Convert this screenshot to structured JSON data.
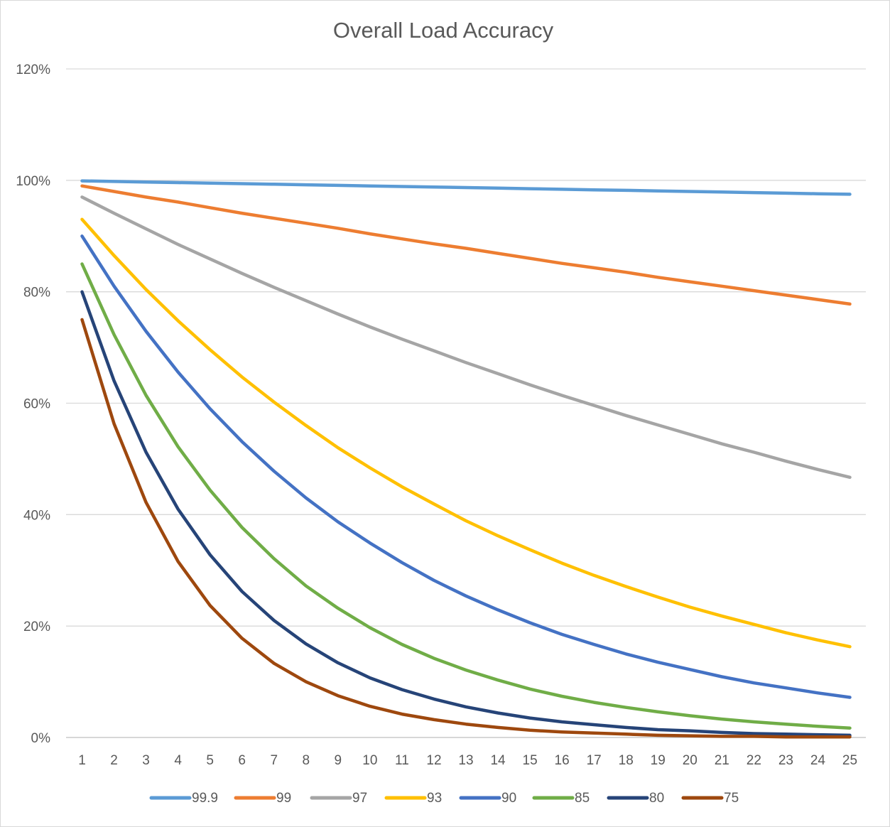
{
  "chart_data": {
    "type": "line",
    "title": "Overall Load Accuracy",
    "xlabel": "",
    "ylabel": "",
    "x": [
      1,
      2,
      3,
      4,
      5,
      6,
      7,
      8,
      9,
      10,
      11,
      12,
      13,
      14,
      15,
      16,
      17,
      18,
      19,
      20,
      21,
      22,
      23,
      24,
      25
    ],
    "ylim": [
      0,
      1.2
    ],
    "yticks": [
      {
        "value": 0,
        "label": "0%"
      },
      {
        "value": 0.2,
        "label": "20%"
      },
      {
        "value": 0.4,
        "label": "40%"
      },
      {
        "value": 0.6,
        "label": "60%"
      },
      {
        "value": 0.8,
        "label": "80%"
      },
      {
        "value": 1.0,
        "label": "100%"
      },
      {
        "value": 1.2,
        "label": "120%"
      }
    ],
    "grid": true,
    "legend_position": "bottom",
    "series": [
      {
        "name": "99.9",
        "color": "#5b9bd5",
        "values": [
          0.999,
          0.998,
          0.997,
          0.996,
          0.995,
          0.994,
          0.993,
          0.992,
          0.991,
          0.99,
          0.989,
          0.988,
          0.987,
          0.986,
          0.985,
          0.984,
          0.983,
          0.982,
          0.981,
          0.98,
          0.979,
          0.978,
          0.977,
          0.976,
          0.975
        ]
      },
      {
        "name": "99",
        "color": "#ed7d31",
        "values": [
          0.99,
          0.98,
          0.97,
          0.961,
          0.951,
          0.941,
          0.932,
          0.923,
          0.914,
          0.904,
          0.895,
          0.886,
          0.878,
          0.869,
          0.86,
          0.851,
          0.843,
          0.835,
          0.826,
          0.818,
          0.81,
          0.802,
          0.794,
          0.786,
          0.778
        ]
      },
      {
        "name": "97",
        "color": "#a5a5a5",
        "values": [
          0.97,
          0.941,
          0.913,
          0.885,
          0.859,
          0.833,
          0.808,
          0.784,
          0.76,
          0.737,
          0.715,
          0.694,
          0.673,
          0.653,
          0.633,
          0.614,
          0.596,
          0.578,
          0.561,
          0.544,
          0.527,
          0.512,
          0.496,
          0.481,
          0.467
        ]
      },
      {
        "name": "93",
        "color": "#ffc000",
        "values": [
          0.93,
          0.865,
          0.804,
          0.748,
          0.696,
          0.647,
          0.602,
          0.56,
          0.52,
          0.484,
          0.45,
          0.419,
          0.389,
          0.362,
          0.337,
          0.313,
          0.291,
          0.271,
          0.252,
          0.234,
          0.218,
          0.203,
          0.188,
          0.175,
          0.163
        ]
      },
      {
        "name": "90",
        "color": "#4472c4",
        "values": [
          0.9,
          0.81,
          0.729,
          0.656,
          0.59,
          0.531,
          0.478,
          0.43,
          0.387,
          0.349,
          0.314,
          0.282,
          0.254,
          0.229,
          0.206,
          0.185,
          0.167,
          0.15,
          0.135,
          0.122,
          0.109,
          0.098,
          0.089,
          0.08,
          0.072
        ]
      },
      {
        "name": "85",
        "color": "#70ad47",
        "values": [
          0.85,
          0.723,
          0.614,
          0.522,
          0.444,
          0.377,
          0.321,
          0.272,
          0.232,
          0.197,
          0.167,
          0.142,
          0.121,
          0.103,
          0.087,
          0.074,
          0.063,
          0.054,
          0.046,
          0.039,
          0.033,
          0.028,
          0.024,
          0.02,
          0.017
        ]
      },
      {
        "name": "80",
        "color": "#264478",
        "values": [
          0.8,
          0.64,
          0.512,
          0.41,
          0.328,
          0.262,
          0.21,
          0.168,
          0.134,
          0.107,
          0.086,
          0.069,
          0.055,
          0.044,
          0.035,
          0.028,
          0.023,
          0.018,
          0.014,
          0.012,
          0.009,
          0.007,
          0.006,
          0.005,
          0.004
        ]
      },
      {
        "name": "75",
        "color": "#9e480e",
        "values": [
          0.75,
          0.563,
          0.422,
          0.316,
          0.237,
          0.178,
          0.133,
          0.1,
          0.075,
          0.056,
          0.042,
          0.032,
          0.024,
          0.018,
          0.013,
          0.01,
          0.008,
          0.006,
          0.004,
          0.003,
          0.002,
          0.002,
          0.001,
          0.001,
          0.001
        ]
      }
    ]
  }
}
